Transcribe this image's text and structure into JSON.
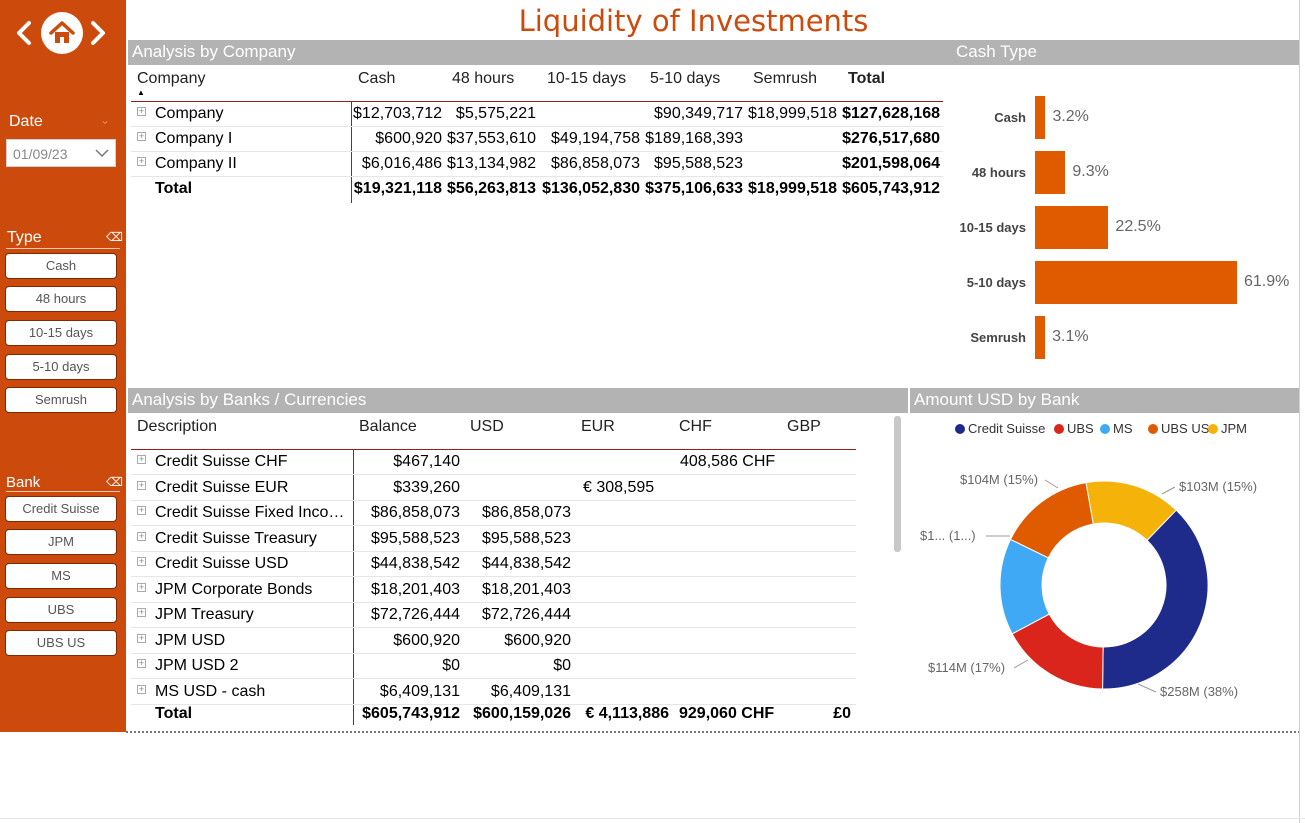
{
  "title": "Liquidity of Investments",
  "sidebar": {
    "date_label": "Date",
    "date_value": "01/09/23",
    "type_label": "Type",
    "type_items": [
      "Cash",
      "48 hours",
      "10-15 days",
      "5-10 days",
      "Semrush"
    ],
    "bank_label": "Bank",
    "bank_items": [
      "Credit Suisse",
      "JPM",
      "MS",
      "UBS",
      "UBS US"
    ]
  },
  "company_table": {
    "section_title": "Analysis by Company",
    "headers": [
      "Company",
      "Cash",
      "48 hours",
      "10-15 days",
      "5-10 days",
      "Semrush",
      "Total"
    ],
    "rows": [
      [
        "Company",
        "$12,703,712",
        "$5,575,221",
        "",
        "$90,349,717",
        "$18,999,518",
        "$127,628,168"
      ],
      [
        "Company I",
        "$600,920",
        "$37,553,610",
        "$49,194,758",
        "$189,168,393",
        "",
        "$276,517,680"
      ],
      [
        "Company II",
        "$6,016,486",
        "$13,134,982",
        "$86,858,073",
        "$95,588,523",
        "",
        "$201,598,064"
      ]
    ],
    "total": [
      "Total",
      "$19,321,118",
      "$56,263,813",
      "$136,052,830",
      "$375,106,633",
      "$18,999,518",
      "$605,743,912"
    ]
  },
  "cash_type": {
    "section_title": "Cash Type"
  },
  "chart_data": [
    {
      "type": "bar",
      "orientation": "horizontal",
      "categories": [
        "Cash",
        "48 hours",
        "10-15 days",
        "5-10 days",
        "Semrush"
      ],
      "values": [
        3.2,
        9.3,
        22.5,
        61.9,
        3.1
      ],
      "labels": [
        "3.2%",
        "9.3%",
        "22.5%",
        "61.9%",
        "3.1%"
      ],
      "color": "#e05a00"
    },
    {
      "type": "pie",
      "donut": true,
      "categories": [
        "Credit Suisse",
        "UBS",
        "MS",
        "UBS US",
        "JPM"
      ],
      "values": [
        38,
        17,
        15,
        15,
        15
      ],
      "labels": [
        "$258M (38%)",
        "$114M (17%)",
        "$1... (1...)",
        "$104M (15%)",
        "$103M (15%)"
      ],
      "colors": [
        "#1f2b8a",
        "#d9251c",
        "#3fa9f5",
        "#e05a00",
        "#f5b30a"
      ],
      "legend": "top"
    }
  ],
  "bank_table": {
    "section_title": "Analysis by Banks / Currencies",
    "headers": [
      "Description",
      "Balance",
      "USD",
      "EUR",
      "CHF",
      "GBP"
    ],
    "rows": [
      [
        "Credit Suisse CHF",
        "$467,140",
        "",
        "",
        "408,586 CHF",
        ""
      ],
      [
        "Credit Suisse EUR",
        "$339,260",
        "",
        "€ 308,595",
        "",
        ""
      ],
      [
        "Credit Suisse Fixed Inco…",
        "$86,858,073",
        "$86,858,073",
        "",
        "",
        ""
      ],
      [
        "Credit Suisse Treasury",
        "$95,588,523",
        "$95,588,523",
        "",
        "",
        ""
      ],
      [
        "Credit Suisse USD",
        "$44,838,542",
        "$44,838,542",
        "",
        "",
        ""
      ],
      [
        "JPM Corporate Bonds",
        "$18,201,403",
        "$18,201,403",
        "",
        "",
        ""
      ],
      [
        "JPM Treasury",
        "$72,726,444",
        "$72,726,444",
        "",
        "",
        ""
      ],
      [
        "JPM USD",
        "$600,920",
        "$600,920",
        "",
        "",
        ""
      ],
      [
        "JPM USD 2",
        "$0",
        "$0",
        "",
        "",
        ""
      ],
      [
        "MS USD - cash",
        "$6,409,131",
        "$6,409,131",
        "",
        "",
        ""
      ]
    ],
    "total": [
      "Total",
      "$605,743,912",
      "$600,159,026",
      "€ 4,113,886",
      "929,060 CHF",
      "£0"
    ]
  },
  "amount_usd": {
    "section_title": "Amount USD by Bank"
  }
}
